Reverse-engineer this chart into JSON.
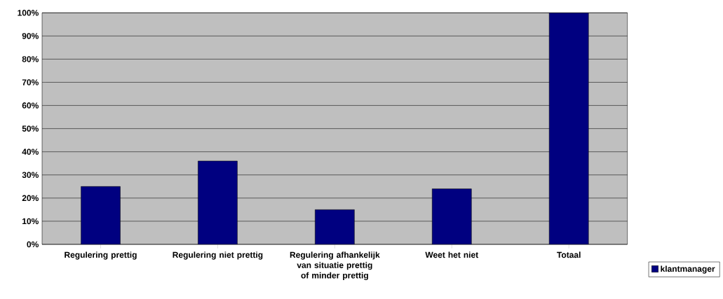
{
  "chart_data": {
    "type": "bar",
    "categories": [
      "Regulering prettig",
      "Regulering niet prettig",
      "Regulering afhankelijk van situatie prettig of minder prettig",
      "Weet het niet",
      "Totaal"
    ],
    "series": [
      {
        "name": "klantmanager",
        "color": "#000080",
        "values": [
          25,
          36,
          15,
          24,
          100
        ]
      }
    ],
    "ylim": [
      0,
      100
    ],
    "yticks": [
      {
        "value": 0,
        "label": "0%"
      },
      {
        "value": 10,
        "label": "10%"
      },
      {
        "value": 20,
        "label": "20%"
      },
      {
        "value": 30,
        "label": "30%"
      },
      {
        "value": 40,
        "label": "40%"
      },
      {
        "value": 50,
        "label": "50%"
      },
      {
        "value": 60,
        "label": "60%"
      },
      {
        "value": 70,
        "label": "70%"
      },
      {
        "value": 80,
        "label": "80%"
      },
      {
        "value": 90,
        "label": "90%"
      },
      {
        "value": 100,
        "label": "100%"
      }
    ],
    "grid": "y",
    "legend": "bottom right"
  }
}
